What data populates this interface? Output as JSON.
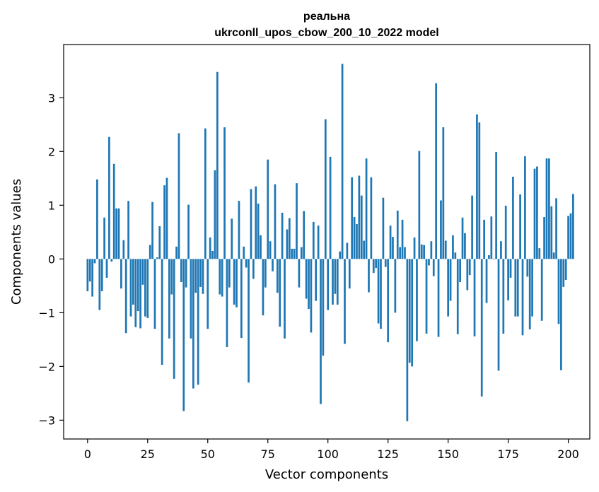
{
  "chart_data": {
    "type": "bar",
    "title": [
      "реальна",
      "ukrconll_upos_cbow_200_10_2022 model"
    ],
    "xlabel": "Vector components",
    "ylabel": "Components values",
    "xlim": [
      -9.95,
      208.95
    ],
    "ylim": [
      -3.35,
      3.99
    ],
    "x_ticks": [
      0,
      25,
      50,
      75,
      100,
      125,
      150,
      175,
      200
    ],
    "y_ticks": [
      -3,
      -2,
      -1,
      0,
      1,
      2,
      3
    ],
    "x_tick_labels": [
      "0",
      "25",
      "50",
      "75",
      "100",
      "125",
      "150",
      "175",
      "200"
    ],
    "y_tick_labels": [
      "−3",
      "−2",
      "−1",
      "0",
      "1",
      "2",
      "3"
    ],
    "bar_color": "#1f77b4",
    "grid": false,
    "values": [
      -0.6,
      -0.42,
      -0.7,
      -0.08,
      1.48,
      -0.95,
      -0.6,
      0.77,
      -0.35,
      2.27,
      -0.05,
      1.77,
      0.94,
      0.94,
      -0.55,
      0.35,
      -1.38,
      1.08,
      -1.07,
      -0.85,
      -1.27,
      -0.97,
      -1.29,
      -0.48,
      -1.07,
      -1.1,
      0.26,
      1.06,
      -1.3,
      0.03,
      0.61,
      -1.97,
      1.37,
      1.51,
      -1.48,
      -0.66,
      -2.23,
      0.23,
      2.34,
      -0.43,
      -2.83,
      -0.53,
      1.01,
      -1.48,
      -2.41,
      -0.63,
      -2.34,
      -0.52,
      -0.65,
      2.43,
      -1.3,
      0.4,
      0.15,
      1.65,
      3.48,
      -0.66,
      -0.7,
      2.45,
      -1.64,
      -0.53,
      0.75,
      -0.85,
      -0.9,
      1.08,
      -1.47,
      0.23,
      -0.16,
      -2.3,
      1.3,
      -0.37,
      1.35,
      1.03,
      0.44,
      -1.05,
      -0.53,
      1.85,
      0.33,
      -0.23,
      1.39,
      -0.63,
      -1.26,
      0.86,
      -1.48,
      0.55,
      0.76,
      0.19,
      0.19,
      1.41,
      -0.53,
      0.22,
      0.89,
      -0.74,
      -0.93,
      -1.37,
      0.69,
      -0.78,
      0.62,
      -2.7,
      -1.8,
      2.6,
      -0.95,
      1.9,
      -0.85,
      -0.65,
      -0.85,
      0.14,
      3.63,
      -1.58,
      0.3,
      -0.55,
      1.52,
      0.78,
      0.65,
      1.55,
      1.18,
      0.34,
      1.87,
      -0.62,
      1.52,
      -0.26,
      -0.17,
      -1.2,
      -1.3,
      1.14,
      -0.15,
      -1.55,
      0.62,
      0.41,
      -1.0,
      0.9,
      0.22,
      0.73,
      0.22,
      -3.02,
      -1.93,
      -2.0,
      0.4,
      -1.53,
      2.01,
      0.27,
      0.26,
      -1.39,
      -0.12,
      0.33,
      -0.32,
      3.27,
      -1.45,
      1.09,
      2.45,
      0.34,
      -1.07,
      -0.78,
      0.44,
      0.12,
      -1.4,
      -0.43,
      0.77,
      0.48,
      -0.58,
      -0.3,
      1.18,
      -1.44,
      2.69,
      2.54,
      -2.56,
      0.73,
      -0.82,
      0.07,
      0.79,
      -0.01,
      1.99,
      -2.08,
      0.33,
      -1.39,
      0.99,
      -0.77,
      -0.35,
      1.53,
      -1.07,
      -1.07,
      1.2,
      -1.42,
      1.91,
      -0.33,
      -1.31,
      -1.07,
      1.68,
      1.72,
      0.2,
      -1.15,
      0.78,
      1.87,
      1.87,
      0.98,
      0.12,
      1.13,
      -1.21,
      -2.07,
      -0.52,
      -0.39,
      0.8,
      0.85,
      1.21
    ]
  }
}
